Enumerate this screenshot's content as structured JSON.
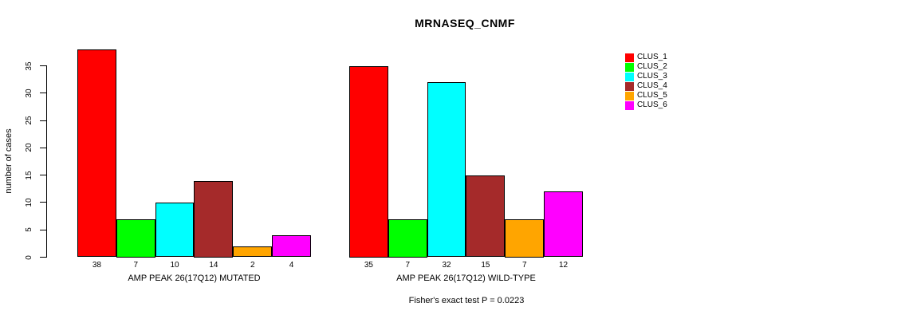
{
  "title": "MRNASEQ_CNMF",
  "chart_data": {
    "type": "bar",
    "title": "MRNASEQ_CNMF",
    "xlabel": "",
    "ylabel": "number of cases",
    "ylim": [
      0,
      35
    ],
    "yticks": [
      0,
      5,
      10,
      15,
      20,
      25,
      30,
      35
    ],
    "grid": false,
    "legend_position": "right",
    "series_names": [
      "CLUS_1",
      "CLUS_2",
      "CLUS_3",
      "CLUS_4",
      "CLUS_5",
      "CLUS_6"
    ],
    "series_colors": [
      "#FF0000",
      "#00FF00",
      "#00FFFF",
      "#A52A2A",
      "#FFA500",
      "#FF00FF"
    ],
    "groups": [
      {
        "label": "AMP PEAK 26(17Q12) MUTATED",
        "values": [
          38,
          7,
          10,
          14,
          2,
          4
        ]
      },
      {
        "label": "AMP PEAK 26(17Q12) WILD-TYPE",
        "values": [
          35,
          7,
          32,
          15,
          7,
          12
        ]
      }
    ],
    "bar_value_labels": true,
    "annotation": "Fisher's exact test P = 0.0223"
  }
}
